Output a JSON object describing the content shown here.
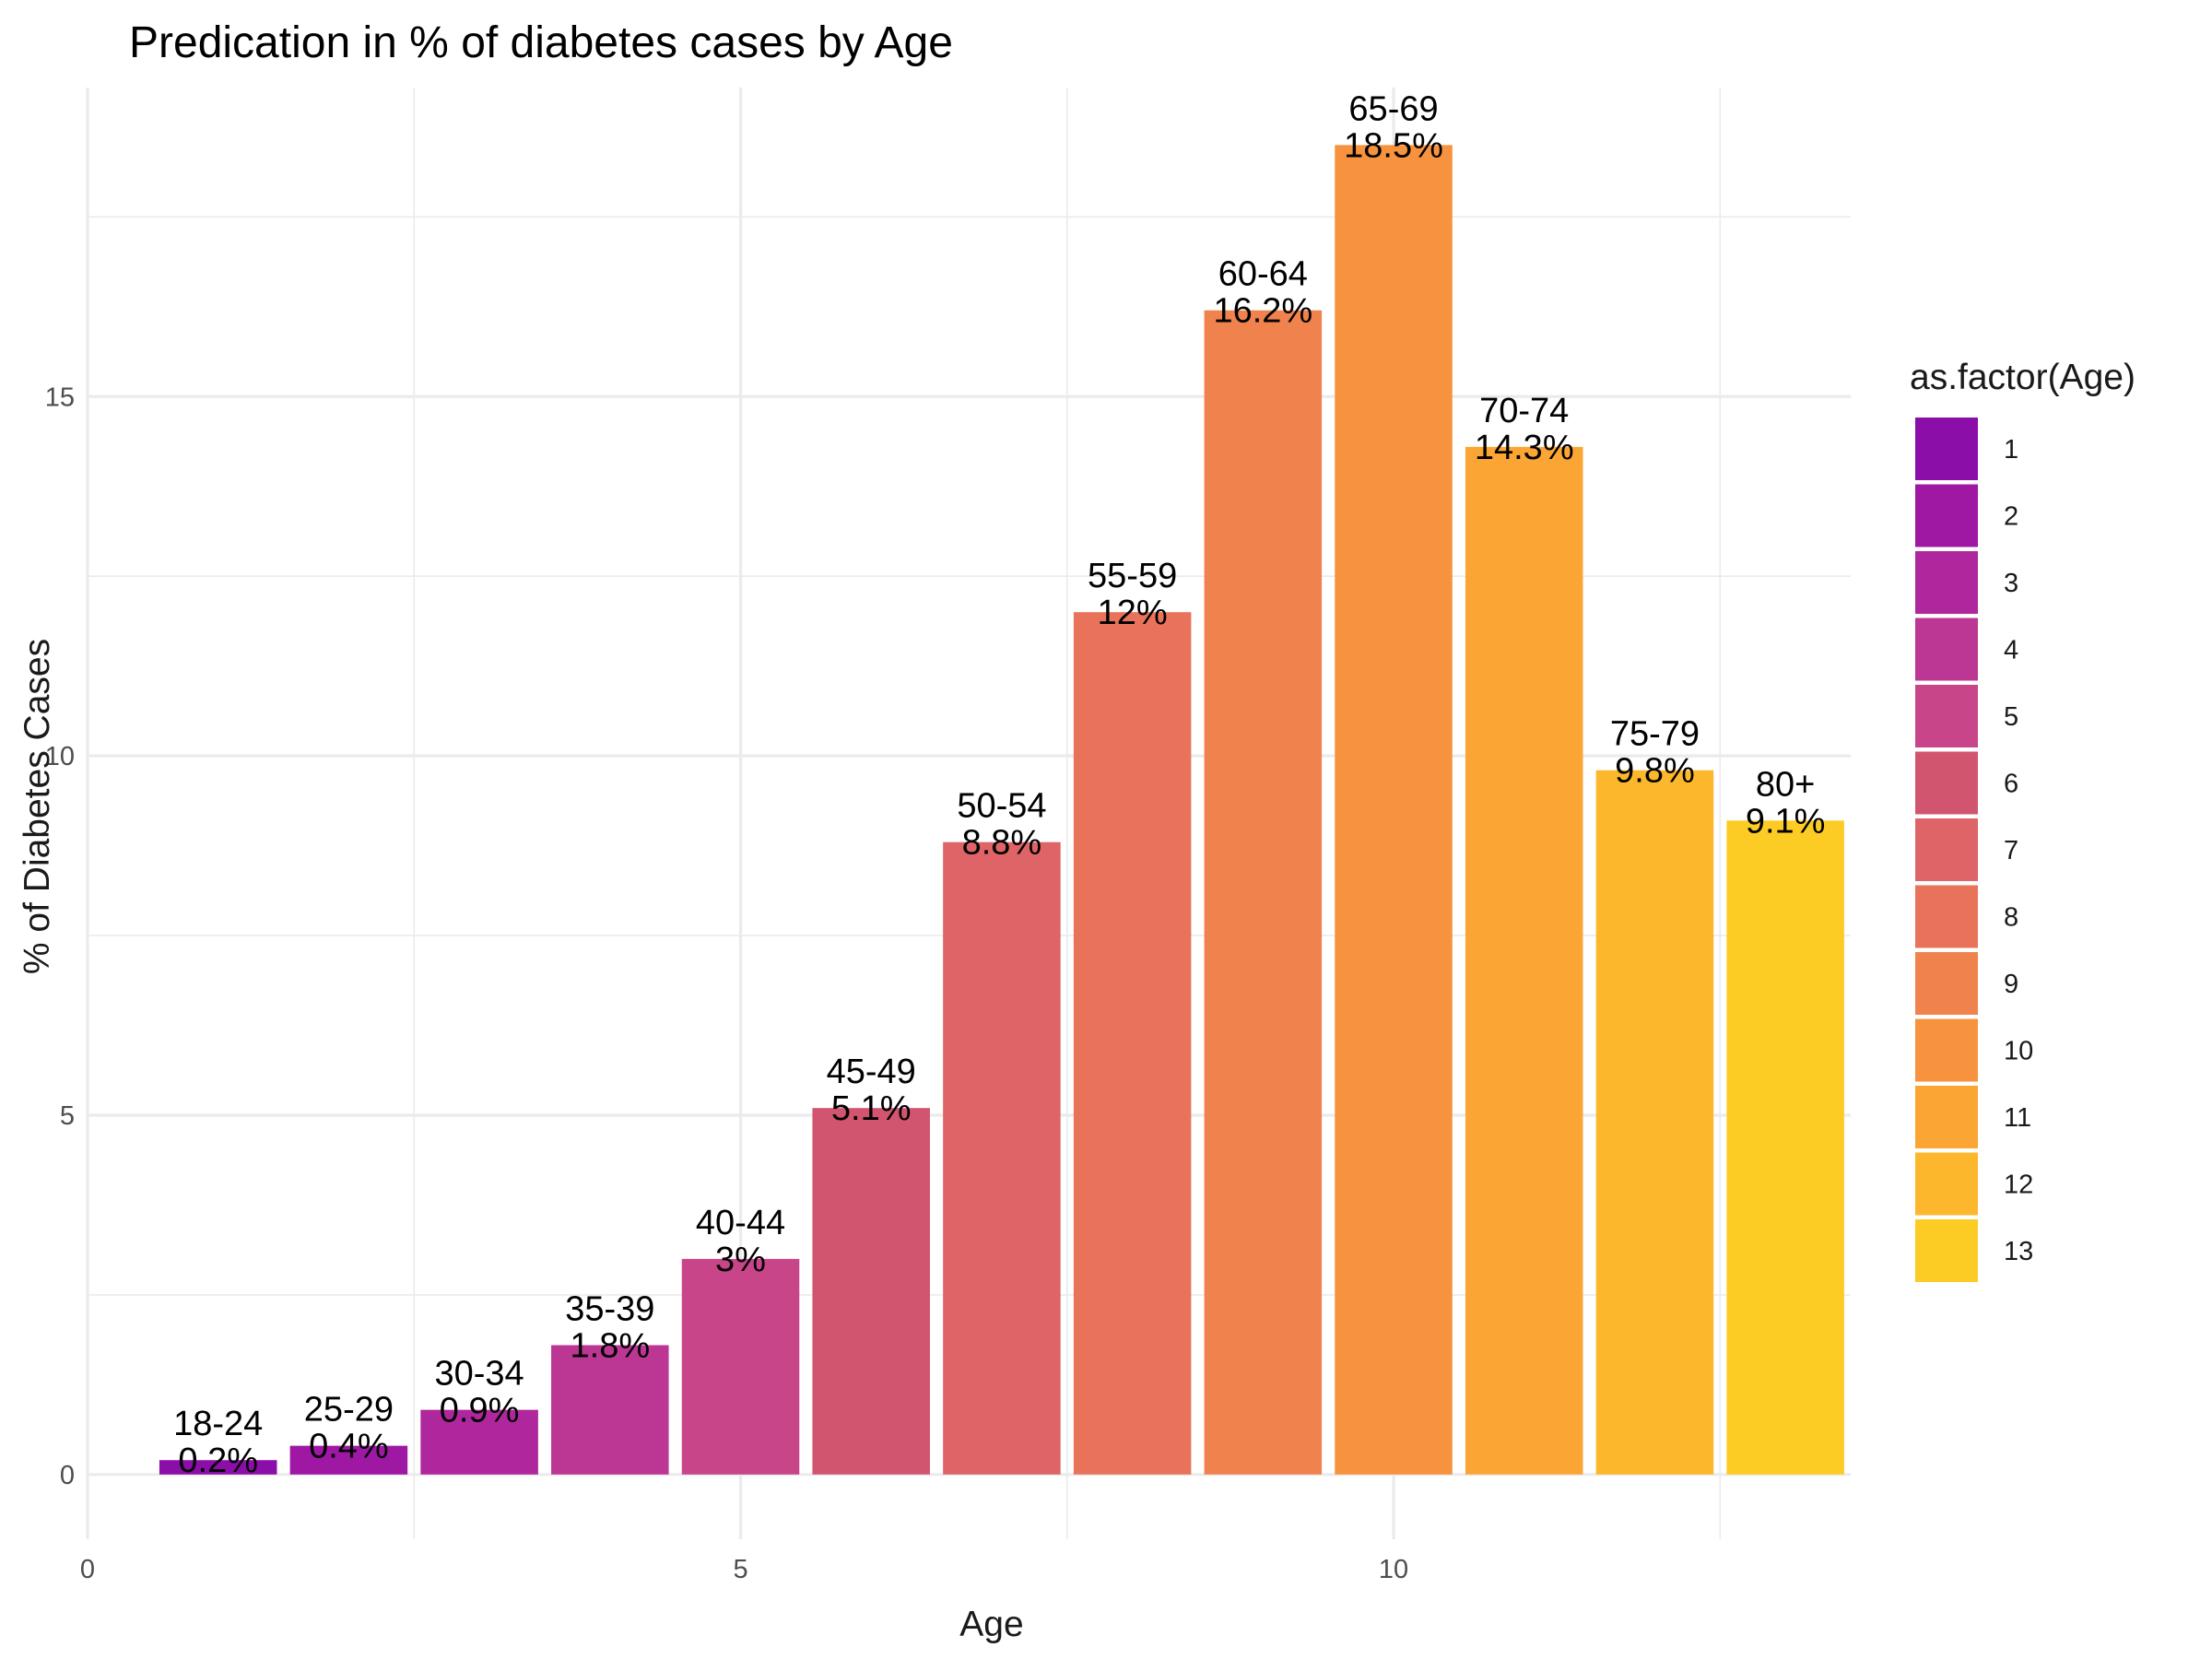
{
  "chart_data": {
    "type": "bar",
    "title": "Predication in % of diabetes cases by  Age",
    "xlabel": "Age",
    "ylabel": "% of Diabetes Cases",
    "xlim": [
      0,
      13.5
    ],
    "ylim": [
      -0.9,
      19.3
    ],
    "x_ticks": [
      0,
      5,
      10
    ],
    "y_ticks": [
      0,
      5,
      10,
      15
    ],
    "grid": true,
    "x": [
      1,
      2,
      3,
      4,
      5,
      6,
      7,
      8,
      9,
      10,
      11,
      12,
      13
    ],
    "values": [
      0.2,
      0.4,
      0.9,
      1.8,
      3.0,
      5.1,
      8.8,
      12.0,
      16.2,
      18.5,
      14.3,
      9.8,
      9.1
    ],
    "age_groups": [
      "18-24",
      "25-29",
      "30-34",
      "35-39",
      "40-44",
      "45-49",
      "50-54",
      "55-59",
      "60-64",
      "65-69",
      "70-74",
      "75-79",
      "80+"
    ],
    "value_labels": [
      "0.2%",
      "0.4%",
      "0.9%",
      "1.8%",
      "3%",
      "5.1%",
      "8.8%",
      "12%",
      "16.2%",
      "18.5%",
      "14.3%",
      "9.8%",
      "9.1%"
    ],
    "colors": [
      "#8c0ea8",
      "#9e18a4",
      "#ae279c",
      "#bc3694",
      "#c8458a",
      "#d25570",
      "#de6467",
      "#e8735a",
      "#f0824e",
      "#f7933e",
      "#fba634",
      "#fdb72c",
      "#fdcc24"
    ],
    "legend": {
      "title": "as.factor(Age)",
      "position": "right",
      "entries": [
        "1",
        "2",
        "3",
        "4",
        "5",
        "6",
        "7",
        "8",
        "9",
        "10",
        "11",
        "12",
        "13"
      ]
    }
  }
}
